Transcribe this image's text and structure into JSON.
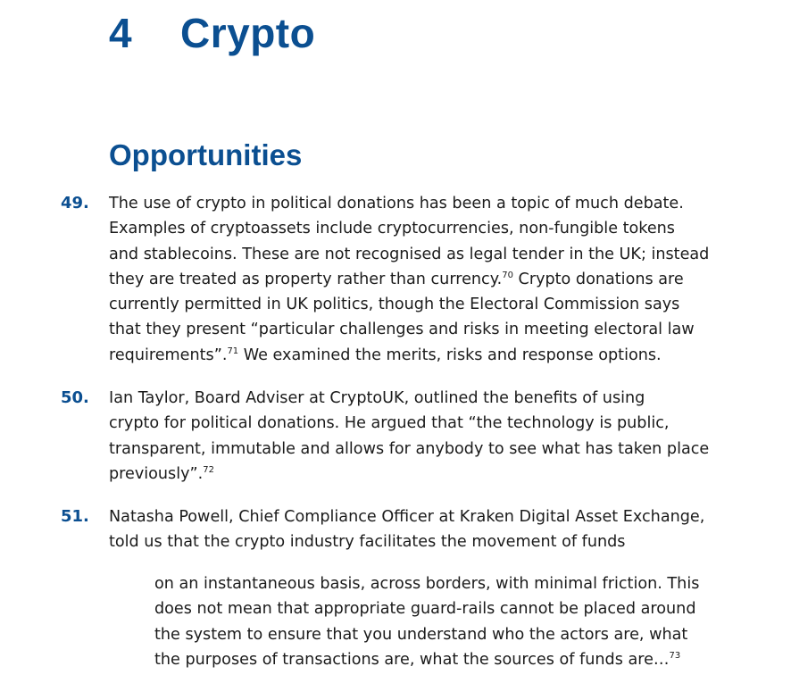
{
  "chapter": {
    "number": "4",
    "title": "Crypto"
  },
  "section_title": "Opportunities",
  "paragraphs": [
    {
      "number": "49.",
      "lines": [
        [
          {
            "t": "The use of crypto in political donations has been a topic of much debate."
          }
        ],
        [
          {
            "t": "Examples of cryptoassets include cryptocurrencies, non-fungible tokens"
          }
        ],
        [
          {
            "t": "and stablecoins. These are not recognised as legal tender in the UK; instead"
          }
        ],
        [
          {
            "t": "they are treated as property rather than currency."
          },
          {
            "sup": "70"
          },
          {
            "t": " Crypto donations are"
          }
        ],
        [
          {
            "t": "currently permitted in UK politics, though the Electoral Commission says"
          }
        ],
        [
          {
            "t": "that they present “particular challenges and risks in meeting electoral law"
          }
        ],
        [
          {
            "t": "requirements”."
          },
          {
            "sup": "71"
          },
          {
            "t": " We examined the merits, risks and response options."
          }
        ]
      ]
    },
    {
      "number": "50.",
      "lines": [
        [
          {
            "t": "Ian Taylor, Board Adviser at CryptoUK, outlined the benefits of using"
          }
        ],
        [
          {
            "t": "crypto for political donations. He argued that “the technology is public,"
          }
        ],
        [
          {
            "t": "transparent, immutable and allows for anybody to see what has taken place"
          }
        ],
        [
          {
            "t": "previously”."
          },
          {
            "sup": "72"
          }
        ]
      ]
    },
    {
      "number": "51.",
      "lines": [
        [
          {
            "t": "Natasha Powell, Chief Compliance Officer at Kraken Digital Asset Exchange,"
          }
        ],
        [
          {
            "t": "told us that the crypto industry facilitates the movement of funds"
          }
        ]
      ]
    }
  ],
  "quote": {
    "lines": [
      [
        {
          "t": "on an instantaneous basis, across borders, with minimal friction. This"
        }
      ],
      [
        {
          "t": "does not mean that appropriate guard-rails cannot be placed around"
        }
      ],
      [
        {
          "t": "the system to ensure that you understand who the actors are, what"
        }
      ],
      [
        {
          "t": "the purposes of transactions are, what the sources of funds are…"
        },
        {
          "sup": "73"
        }
      ]
    ]
  },
  "colors": {
    "heading": "#0b4f91",
    "text": "#1b1b1b"
  }
}
